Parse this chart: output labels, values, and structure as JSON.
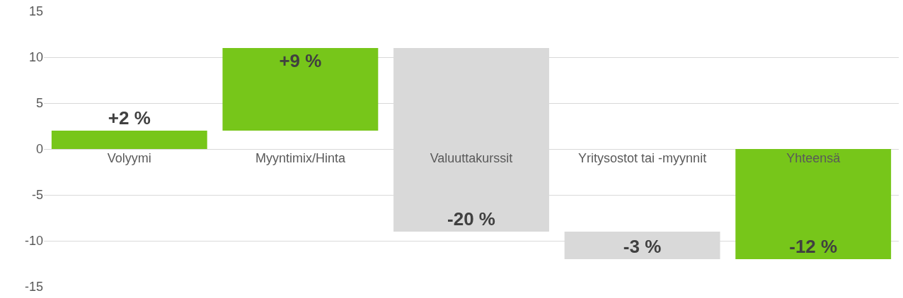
{
  "chart_data": {
    "type": "bar",
    "categories": [
      "Volyymi",
      "Myyntimix/Hinta",
      "Valuuttakurssit",
      "Yritysostot tai -myynnit",
      "Yhteensä"
    ],
    "values": [
      2,
      9,
      -20,
      -3,
      -12
    ],
    "base": [
      0,
      2,
      11,
      -9,
      0
    ],
    "colors": [
      "#77c61a",
      "#77c61a",
      "#d9d9d9",
      "#d9d9d9",
      "#77c61a"
    ],
    "value_labels": [
      "+2 %",
      "+9 %",
      "-20 %",
      "-3 %",
      "-12 %"
    ],
    "ylim": [
      -15,
      15
    ],
    "yticks": [
      -15,
      -10,
      -5,
      0,
      5,
      10,
      15
    ],
    "grid": "y"
  }
}
